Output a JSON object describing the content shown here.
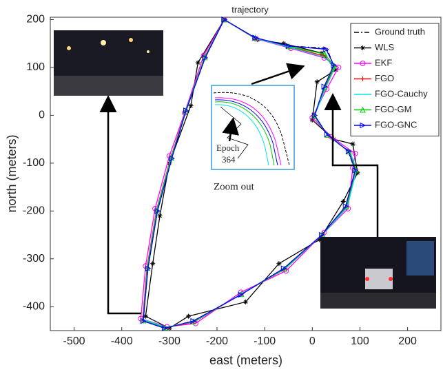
{
  "chart_data": {
    "type": "line",
    "title": "trajectory",
    "x_label": "east (meters)",
    "y_label": "north (meters)",
    "xlim": [
      -550,
      270
    ],
    "ylim": [
      -450,
      205
    ],
    "xticks": [
      -500,
      -400,
      -300,
      -200,
      -100,
      0,
      100,
      200
    ],
    "yticks": [
      -400,
      -300,
      -200,
      -100,
      0,
      100,
      200
    ],
    "grid": false,
    "legend": "upper right",
    "annotations": [
      "Epoch",
      "364",
      "Zoom out"
    ],
    "series": [
      {
        "name": "Ground truth",
        "color": "#000000",
        "dash": "dashdot",
        "marker": "none",
        "x": [
          -185,
          -120,
          -50,
          30,
          45,
          25,
          5,
          30,
          75,
          90,
          70,
          20,
          -60,
          -150,
          -250,
          -310,
          -355,
          -345,
          -325,
          -295,
          -265,
          -225,
          -185
        ],
        "values": [
          200,
          162,
          145,
          140,
          105,
          60,
          0,
          -40,
          -75,
          -115,
          -190,
          -250,
          -320,
          -375,
          -430,
          -445,
          -430,
          -320,
          -200,
          -90,
          10,
          120,
          200
        ]
      },
      {
        "name": "WLS",
        "color": "#000000",
        "marker": "star",
        "x": [
          -185,
          -115,
          -60,
          20,
          50,
          10,
          0,
          45,
          85,
          95,
          65,
          15,
          -70,
          -140,
          -260,
          -300,
          -350,
          -335,
          -320,
          -300,
          -255,
          -240,
          -185
        ],
        "values": [
          200,
          158,
          150,
          130,
          95,
          70,
          -10,
          -50,
          -60,
          -120,
          -180,
          -260,
          -310,
          -390,
          -420,
          -445,
          -420,
          -310,
          -210,
          -100,
          20,
          110,
          200
        ]
      },
      {
        "name": "EKF",
        "color": "#ff00ff",
        "marker": "circle",
        "x": [
          -185,
          -118,
          -45,
          25,
          55,
          30,
          0,
          40,
          90,
          85,
          75,
          25,
          -55,
          -150,
          -245,
          -305,
          -360,
          -350,
          -330,
          -300,
          -268,
          -228,
          -185
        ],
        "values": [
          200,
          160,
          140,
          120,
          100,
          55,
          -5,
          -45,
          -80,
          -110,
          -195,
          -245,
          -325,
          -370,
          -435,
          -442,
          -425,
          -315,
          -195,
          -85,
          5,
          125,
          200
        ]
      },
      {
        "name": "FGO",
        "color": "#ff0000",
        "marker": "plus",
        "x": [
          -185,
          -121,
          -48,
          22,
          47,
          27,
          3,
          33,
          78,
          92,
          72,
          22,
          -58,
          -148,
          -248,
          -308,
          -356,
          -347,
          -327,
          -297,
          -266,
          -226,
          -185
        ],
        "values": [
          200,
          161,
          143,
          125,
          102,
          58,
          -2,
          -42,
          -77,
          -113,
          -192,
          -248,
          -322,
          -373,
          -432,
          -444,
          -428,
          -318,
          -198,
          -88,
          8,
          122,
          200
        ]
      },
      {
        "name": "FGO-Cauchy",
        "color": "#00e5e5",
        "marker": "none",
        "x": [
          -185,
          -120,
          -47,
          24,
          48,
          28,
          4,
          34,
          80,
          93,
          73,
          23,
          -57,
          -147,
          -247,
          -307,
          -355,
          -346,
          -326,
          -296,
          -265,
          -225,
          -185
        ],
        "values": [
          200,
          161,
          142,
          122,
          101,
          57,
          -3,
          -43,
          -78,
          -114,
          -193,
          -247,
          -321,
          -372,
          -431,
          -443,
          -427,
          -317,
          -197,
          -87,
          9,
          123,
          200
        ]
      },
      {
        "name": "FGO-GM",
        "color": "#00cc00",
        "marker": "triangle",
        "x": [
          -185,
          -120,
          -49,
          26,
          46,
          26,
          4,
          32,
          77,
          91,
          71,
          21,
          -59,
          -149,
          -249,
          -309,
          -355,
          -346,
          -326,
          -296,
          -266,
          -226,
          -185
        ],
        "values": [
          200,
          162,
          144,
          128,
          103,
          59,
          -1,
          -41,
          -76,
          -114,
          -191,
          -249,
          -321,
          -374,
          -431,
          -444,
          -429,
          -319,
          -199,
          -89,
          9,
          121,
          200
        ]
      },
      {
        "name": "FGO-GNC",
        "color": "#0000ff",
        "marker": "triangle-right",
        "x": [
          -185,
          -120,
          -50,
          29,
          45,
          25,
          5,
          31,
          76,
          90,
          70,
          20,
          -60,
          -150,
          -250,
          -310,
          -355,
          -345,
          -325,
          -295,
          -265,
          -225,
          -185
        ],
        "values": [
          200,
          162,
          145,
          138,
          105,
          60,
          0,
          -40,
          -75,
          -115,
          -190,
          -250,
          -320,
          -375,
          -430,
          -445,
          -430,
          -320,
          -200,
          -90,
          10,
          120,
          200
        ]
      }
    ]
  }
}
